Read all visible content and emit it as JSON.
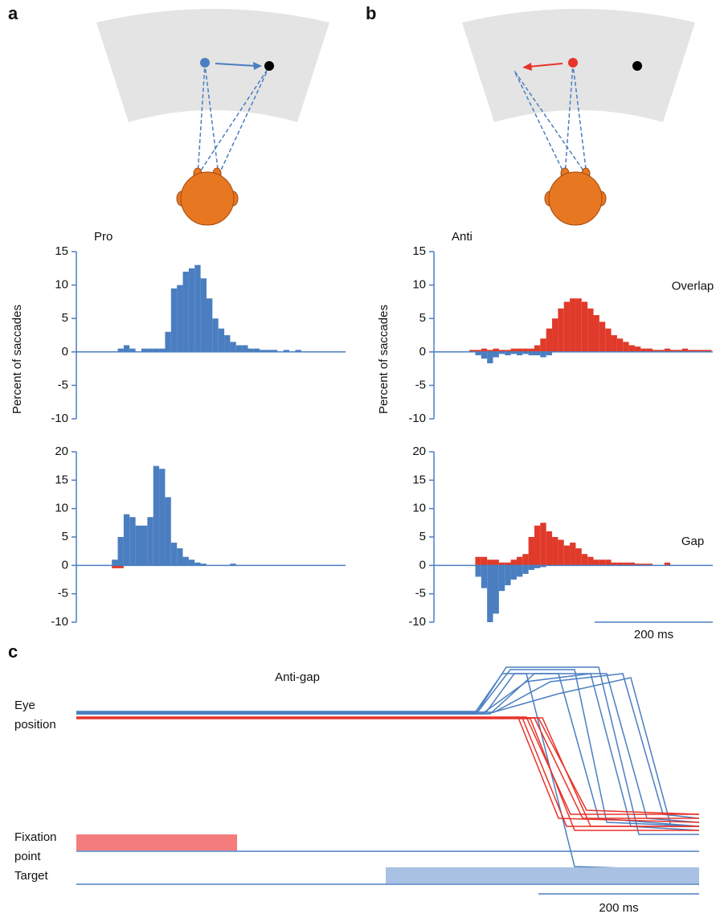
{
  "panel_labels": [
    "a",
    "b",
    "c"
  ],
  "chart_data": [
    {
      "type": "histogram",
      "title": "Pro",
      "ylabel": "Percent of saccades",
      "xlim": [
        0,
        455
      ],
      "ylim": [
        -10,
        15
      ],
      "yticks": [
        -10,
        -5,
        0,
        5,
        10,
        15
      ],
      "bins": [
        70,
        80,
        90,
        100,
        110,
        120,
        130,
        140,
        150,
        160,
        170,
        180,
        190,
        200,
        210,
        220,
        230,
        240,
        250,
        260,
        270,
        280,
        290,
        300,
        310,
        320,
        330,
        340,
        350,
        360,
        370,
        380
      ],
      "series": [
        {
          "color": "#4a7ec0",
          "values": [
            0.5,
            1,
            0.5,
            0,
            0.5,
            0.5,
            0.5,
            0.5,
            3,
            9.5,
            10,
            12,
            12.5,
            13,
            11,
            8,
            5,
            3.5,
            2.5,
            1.5,
            1,
            1,
            0.5,
            0.5,
            0.3,
            0.3,
            0.3,
            0,
            0.3,
            0,
            0.3
          ]
        }
      ]
    },
    {
      "type": "histogram",
      "xlim": [
        0,
        455
      ],
      "ylim": [
        -10,
        20
      ],
      "yticks": [
        -10,
        -5,
        0,
        5,
        10,
        15,
        20
      ],
      "bins": [
        60,
        70,
        80,
        90,
        100,
        110,
        120,
        130,
        140,
        150,
        160,
        170,
        180,
        190,
        200,
        210,
        220,
        230,
        240,
        250,
        260,
        270,
        280,
        290
      ],
      "series": [
        {
          "color": "#4a7ec0",
          "values": [
            1,
            5,
            9,
            8.5,
            7,
            7,
            8.5,
            17.5,
            17,
            12,
            4,
            3,
            1.5,
            1,
            0.5,
            0.3,
            0,
            0,
            0,
            0,
            0.3,
            0,
            0
          ]
        },
        {
          "color": "#e03a2a",
          "values": [
            -0.5,
            -0.5,
            0,
            0,
            0,
            0,
            0,
            0,
            0,
            0,
            0,
            0,
            0,
            0,
            0,
            0,
            0,
            0,
            0,
            0,
            0,
            0,
            0
          ]
        }
      ]
    },
    {
      "type": "histogram",
      "title": "Anti",
      "ylabel": "Percent of saccades",
      "annotation": "Overlap",
      "xlim": [
        0,
        472
      ],
      "ylim": [
        -10,
        15
      ],
      "yticks": [
        -10,
        -5,
        0,
        5,
        10,
        15
      ],
      "bins": [
        60,
        70,
        80,
        90,
        100,
        110,
        120,
        130,
        140,
        150,
        160,
        170,
        180,
        190,
        200,
        210,
        220,
        230,
        240,
        250,
        260,
        270,
        280,
        290,
        300,
        310,
        320,
        330,
        340,
        350,
        360,
        370,
        380,
        390,
        400,
        410,
        420,
        430,
        440,
        450,
        460,
        470
      ],
      "series": [
        {
          "color": "#e03a2a",
          "values": [
            0.3,
            0.3,
            0.5,
            0.3,
            0.5,
            0.3,
            0.3,
            0.5,
            0.5,
            0.5,
            0.5,
            1,
            2,
            3.5,
            5,
            6.5,
            7.5,
            8,
            8,
            7.5,
            6.5,
            5.5,
            4.5,
            3.5,
            2.5,
            2,
            1.5,
            1,
            0.8,
            0.5,
            0.5,
            0.3,
            0.3,
            0.5,
            0.3,
            0.3,
            0.5,
            0.3,
            0.3,
            0.3,
            0.3
          ]
        },
        {
          "color": "#4a7ec0",
          "values": [
            0,
            -0.5,
            -1,
            -1.7,
            -0.8,
            -0.3,
            -0.5,
            -0.3,
            -0.5,
            -0.3,
            -0.5,
            -0.5,
            -0.8,
            -0.5,
            0,
            0,
            0,
            0,
            0,
            0,
            0,
            0,
            0,
            0,
            0,
            0,
            0,
            0,
            0,
            0,
            0,
            0,
            0,
            0,
            0,
            0,
            0,
            0,
            0,
            0,
            0
          ]
        }
      ]
    },
    {
      "type": "histogram",
      "annotation": "Gap",
      "xlim": [
        0,
        472
      ],
      "ylim": [
        -10,
        20
      ],
      "yticks": [
        -10,
        -5,
        0,
        5,
        10,
        15,
        20
      ],
      "scale_bar": {
        "value": 200,
        "label": "200 ms"
      },
      "bins": [
        70,
        80,
        90,
        100,
        110,
        120,
        130,
        140,
        150,
        160,
        170,
        180,
        190,
        200,
        210,
        220,
        230,
        240,
        250,
        260,
        270,
        280,
        290,
        300,
        310,
        320,
        330,
        340,
        350,
        360,
        370,
        380,
        390,
        400,
        410
      ],
      "series": [
        {
          "color": "#e03a2a",
          "values": [
            1.5,
            1.5,
            1,
            1,
            0.5,
            0.5,
            1,
            1.5,
            2,
            5,
            7,
            7.5,
            6,
            5,
            4.5,
            3.5,
            4,
            3,
            2,
            1.5,
            1,
            1,
            1,
            0.5,
            0.5,
            0.5,
            0.5,
            0.3,
            0.3,
            0.3,
            0,
            0,
            0.5,
            0
          ]
        },
        {
          "color": "#4a7ec0",
          "values": [
            -2,
            -4,
            -10,
            -8.5,
            -4.5,
            -3.5,
            -2.5,
            -2,
            -1.5,
            -0.8,
            -0.5,
            -0.3,
            0,
            0,
            0,
            0,
            0,
            0,
            0,
            0,
            0,
            0,
            0,
            0,
            0,
            0,
            0,
            0,
            0,
            0,
            0,
            0,
            0,
            0
          ]
        }
      ]
    },
    {
      "type": "line",
      "title": "Anti-gap",
      "ylabel_lines": [
        "Eye",
        "position"
      ],
      "xlim": [
        0,
        775
      ],
      "ylim": [
        -20,
        7
      ],
      "scale_bar": {
        "value": 200,
        "label": "200 ms"
      },
      "series": [
        {
          "color": "#4a7fc1",
          "x": [
            0,
            495,
            530,
            600,
            650,
            775
          ],
          "values": [
            0,
            0,
            5,
            5,
            -13,
            -14
          ]
        },
        {
          "color": "#4a7fc1",
          "x": [
            0,
            500,
            540,
            620,
            660,
            775
          ],
          "values": [
            0.3,
            0.3,
            5.5,
            5.5,
            -13.5,
            -14
          ]
        },
        {
          "color": "#4a7fc1",
          "x": [
            0,
            505,
            560,
            640,
            690,
            775
          ],
          "values": [
            0,
            0,
            4,
            5,
            -14,
            -14.5
          ]
        },
        {
          "color": "#4a7fc1",
          "x": [
            0,
            510,
            545,
            560,
            620,
            775
          ],
          "values": [
            0.2,
            0.2,
            5,
            5,
            -19,
            -19.5
          ]
        },
        {
          "color": "#4a7fc1",
          "x": [
            0,
            515,
            570,
            660,
            710,
            775
          ],
          "values": [
            0,
            0,
            5,
            5,
            -13,
            -13.5
          ]
        },
        {
          "color": "#4a7fc1",
          "x": [
            0,
            520,
            590,
            680,
            730,
            775
          ],
          "values": [
            0.2,
            0.2,
            4,
            5,
            -12.5,
            -13
          ]
        },
        {
          "color": "#4a7fc1",
          "x": [
            0,
            498,
            535,
            650,
            700,
            775
          ],
          "values": [
            0.1,
            0.1,
            5.8,
            5.8,
            -15,
            -15
          ]
        },
        {
          "color": "#4a7fc1",
          "x": [
            0,
            512,
            600,
            690,
            740,
            775
          ],
          "values": [
            0,
            0,
            2.5,
            4.5,
            -14,
            -14
          ]
        },
        {
          "color": "#e8332a",
          "x": [
            0,
            550,
            600,
            775
          ],
          "values": [
            -0.5,
            -0.5,
            -13,
            -13.5
          ]
        },
        {
          "color": "#e8332a",
          "x": [
            0,
            555,
            610,
            775
          ],
          "values": [
            -0.5,
            -0.5,
            -14,
            -14
          ]
        },
        {
          "color": "#e8332a",
          "x": [
            0,
            560,
            615,
            775
          ],
          "values": [
            -0.4,
            -0.4,
            -12.5,
            -12.5
          ]
        },
        {
          "color": "#e8332a",
          "x": [
            0,
            565,
            620,
            775
          ],
          "values": [
            -0.6,
            -0.6,
            -14.5,
            -14.5
          ]
        },
        {
          "color": "#e8332a",
          "x": [
            0,
            570,
            630,
            775
          ],
          "values": [
            -0.5,
            -0.5,
            -13,
            -13
          ]
        },
        {
          "color": "#e8332a",
          "x": [
            0,
            575,
            635,
            775
          ],
          "values": [
            -0.5,
            -0.5,
            -12,
            -12.5
          ]
        },
        {
          "color": "#e8332a",
          "x": [
            0,
            580,
            640,
            775
          ],
          "values": [
            -0.5,
            -0.5,
            -14,
            -14
          ]
        }
      ],
      "events": [
        {
          "label_lines": [
            "Fixation",
            "point"
          ],
          "color": "#f47c7c",
          "on": 0,
          "off": 200
        },
        {
          "label_lines": [
            "Target"
          ],
          "color": "#a9c1e3",
          "on": 385,
          "off": 775
        }
      ]
    }
  ]
}
